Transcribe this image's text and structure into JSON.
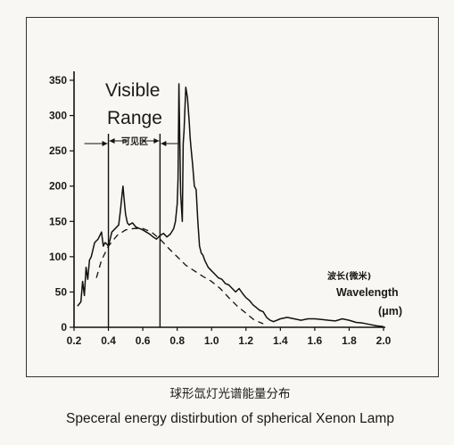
{
  "chart_data": {
    "type": "line",
    "x_ticks": [
      "0.2",
      "0.4",
      "0.6",
      "0.8",
      "1.0",
      "1.2",
      "1.4",
      "1.6",
      "1.8",
      "2.0"
    ],
    "y_ticks": [
      "0",
      "50",
      "100",
      "150",
      "200",
      "250",
      "300",
      "350"
    ],
    "xlim": [
      0.2,
      2.0
    ],
    "ylim": [
      0,
      350
    ],
    "grid": false,
    "visible_range": {
      "label_line1": "Visible",
      "label_line2": "Range",
      "cn_label": "可见区",
      "x_start": 0.4,
      "x_end": 0.7
    },
    "axis_label": {
      "cn": "波长(微米)",
      "en": "Wavelength",
      "unit": "(μm)"
    },
    "caption": {
      "cn": "球形氙灯光谱能量分布",
      "en": "Speceral energy distirbution of spherical Xenon Lamp"
    },
    "series": [
      {
        "style": "solid",
        "x": [
          0.22,
          0.24,
          0.25,
          0.26,
          0.27,
          0.28,
          0.29,
          0.3,
          0.32,
          0.34,
          0.36,
          0.37,
          0.38,
          0.39,
          0.4,
          0.42,
          0.44,
          0.46,
          0.47,
          0.48,
          0.485,
          0.49,
          0.5,
          0.51,
          0.52,
          0.54,
          0.56,
          0.58,
          0.6,
          0.62,
          0.64,
          0.66,
          0.68,
          0.7,
          0.72,
          0.74,
          0.76,
          0.78,
          0.79,
          0.8,
          0.805,
          0.81,
          0.82,
          0.83,
          0.835,
          0.84,
          0.85,
          0.86,
          0.87,
          0.875,
          0.88,
          0.89,
          0.9,
          0.91,
          0.92,
          0.93,
          0.94,
          0.95,
          0.96,
          0.98,
          1.0,
          1.02,
          1.04,
          1.06,
          1.08,
          1.1,
          1.12,
          1.14,
          1.16,
          1.18,
          1.2,
          1.22,
          1.24,
          1.26,
          1.28,
          1.3,
          1.32,
          1.34,
          1.36,
          1.4,
          1.44,
          1.48,
          1.52,
          1.56,
          1.6,
          1.64,
          1.68,
          1.72,
          1.76,
          1.8,
          1.84,
          1.88,
          1.92,
          1.96,
          2.0
        ],
        "y": [
          30,
          36,
          65,
          45,
          85,
          68,
          95,
          100,
          120,
          125,
          135,
          115,
          120,
          118,
          115,
          135,
          140,
          145,
          165,
          190,
          200,
          185,
          160,
          148,
          145,
          148,
          142,
          140,
          138,
          135,
          132,
          128,
          125,
          130,
          133,
          128,
          132,
          140,
          150,
          175,
          210,
          345,
          190,
          150,
          260,
          280,
          340,
          325,
          290,
          270,
          255,
          230,
          200,
          195,
          150,
          115,
          105,
          102,
          95,
          85,
          80,
          75,
          70,
          68,
          62,
          60,
          55,
          50,
          55,
          48,
          42,
          38,
          32,
          28,
          24,
          22,
          14,
          10,
          8,
          12,
          14,
          12,
          10,
          12,
          12,
          11,
          10,
          9,
          12,
          10,
          7,
          6,
          4,
          2,
          1
        ]
      },
      {
        "style": "dashed",
        "x": [
          0.33,
          0.36,
          0.4,
          0.45,
          0.5,
          0.55,
          0.6,
          0.65,
          0.7,
          0.75,
          0.8,
          0.85,
          0.9,
          0.95,
          1.0,
          1.05,
          1.1,
          1.15,
          1.2,
          1.25,
          1.3
        ],
        "y": [
          70,
          95,
          115,
          130,
          138,
          140,
          140,
          135,
          125,
          112,
          100,
          88,
          80,
          72,
          65,
          55,
          42,
          30,
          20,
          10,
          5
        ]
      }
    ]
  }
}
